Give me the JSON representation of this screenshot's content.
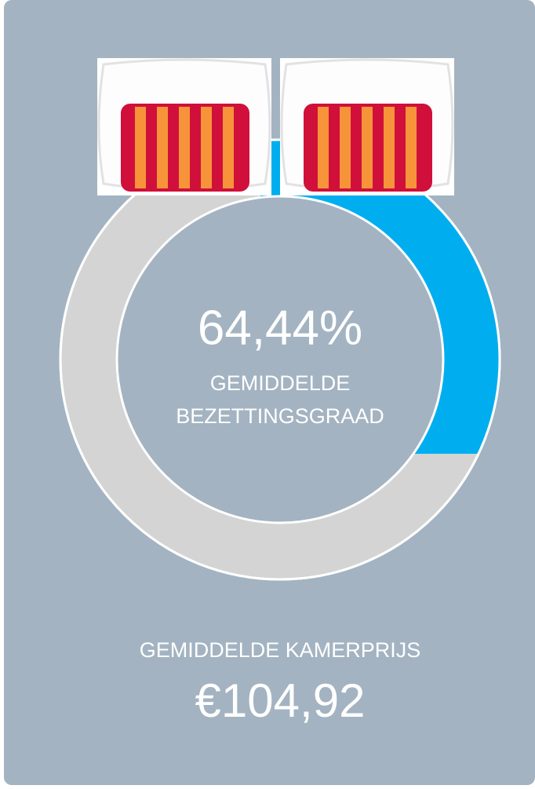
{
  "occupancy": {
    "value": "64,44%",
    "label_lines": [
      "GEMIDDELDE",
      "BEZETTINGSGRAAD"
    ]
  },
  "room_price": {
    "label": "GEMIDDELDE KAMERPRIJS",
    "value": "€104,92"
  }
}
